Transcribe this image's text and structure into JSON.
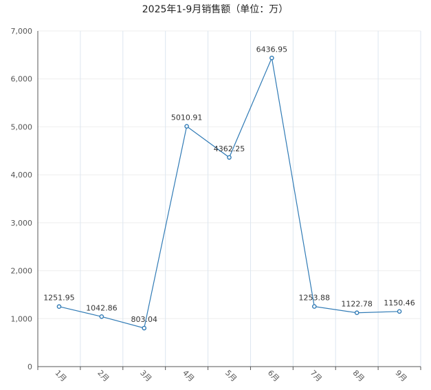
{
  "chart_data": {
    "type": "line",
    "title": "2025年1-9月销售额（单位：万）",
    "categories": [
      "1月",
      "2月",
      "3月",
      "4月",
      "5月",
      "6月",
      "7月",
      "8月",
      "9月"
    ],
    "series": [
      {
        "values": [
          1251.95,
          1042.86,
          803.04,
          5010.91,
          4362.25,
          6436.95,
          1253.88,
          1122.78,
          1150.46
        ],
        "labels": [
          "1251.95",
          "1042.86",
          "803.04",
          "5010.91",
          "4362.25",
          "6436.95",
          "1253.88",
          "1122.78",
          "1150.46"
        ],
        "color": "#2f7ab5"
      }
    ],
    "ylim": [
      0,
      7000
    ],
    "yticks": [
      "0",
      "1,000",
      "2,000",
      "3,000",
      "4,000",
      "5,000",
      "6,000",
      "7,000"
    ],
    "grid": true,
    "legend": "none"
  }
}
